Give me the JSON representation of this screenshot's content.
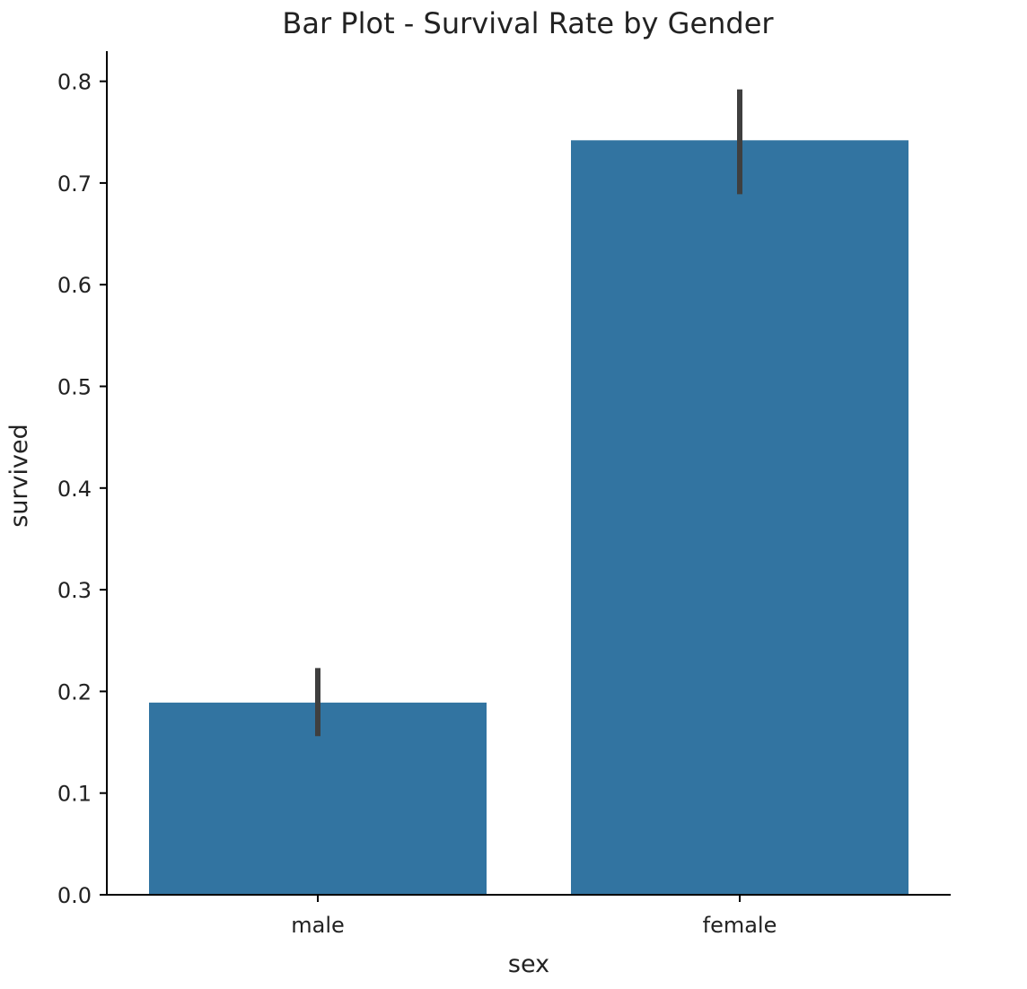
{
  "chart_data": {
    "type": "bar",
    "title": "Bar Plot - Survival Rate by Gender",
    "xlabel": "sex",
    "ylabel": "survived",
    "categories": [
      "male",
      "female"
    ],
    "values": [
      0.189,
      0.742
    ],
    "error_bars": [
      {
        "low": 0.156,
        "high": 0.223
      },
      {
        "low": 0.689,
        "high": 0.792
      }
    ],
    "ylim": [
      0,
      0.82
    ],
    "yticks": [
      "0.0",
      "0.1",
      "0.2",
      "0.3",
      "0.4",
      "0.5",
      "0.6",
      "0.7",
      "0.8"
    ],
    "grid": false,
    "legend": "none",
    "colors": {
      "bar": "#3274a1",
      "error_bar": "#3f3f3f",
      "axis": "#000000"
    }
  }
}
